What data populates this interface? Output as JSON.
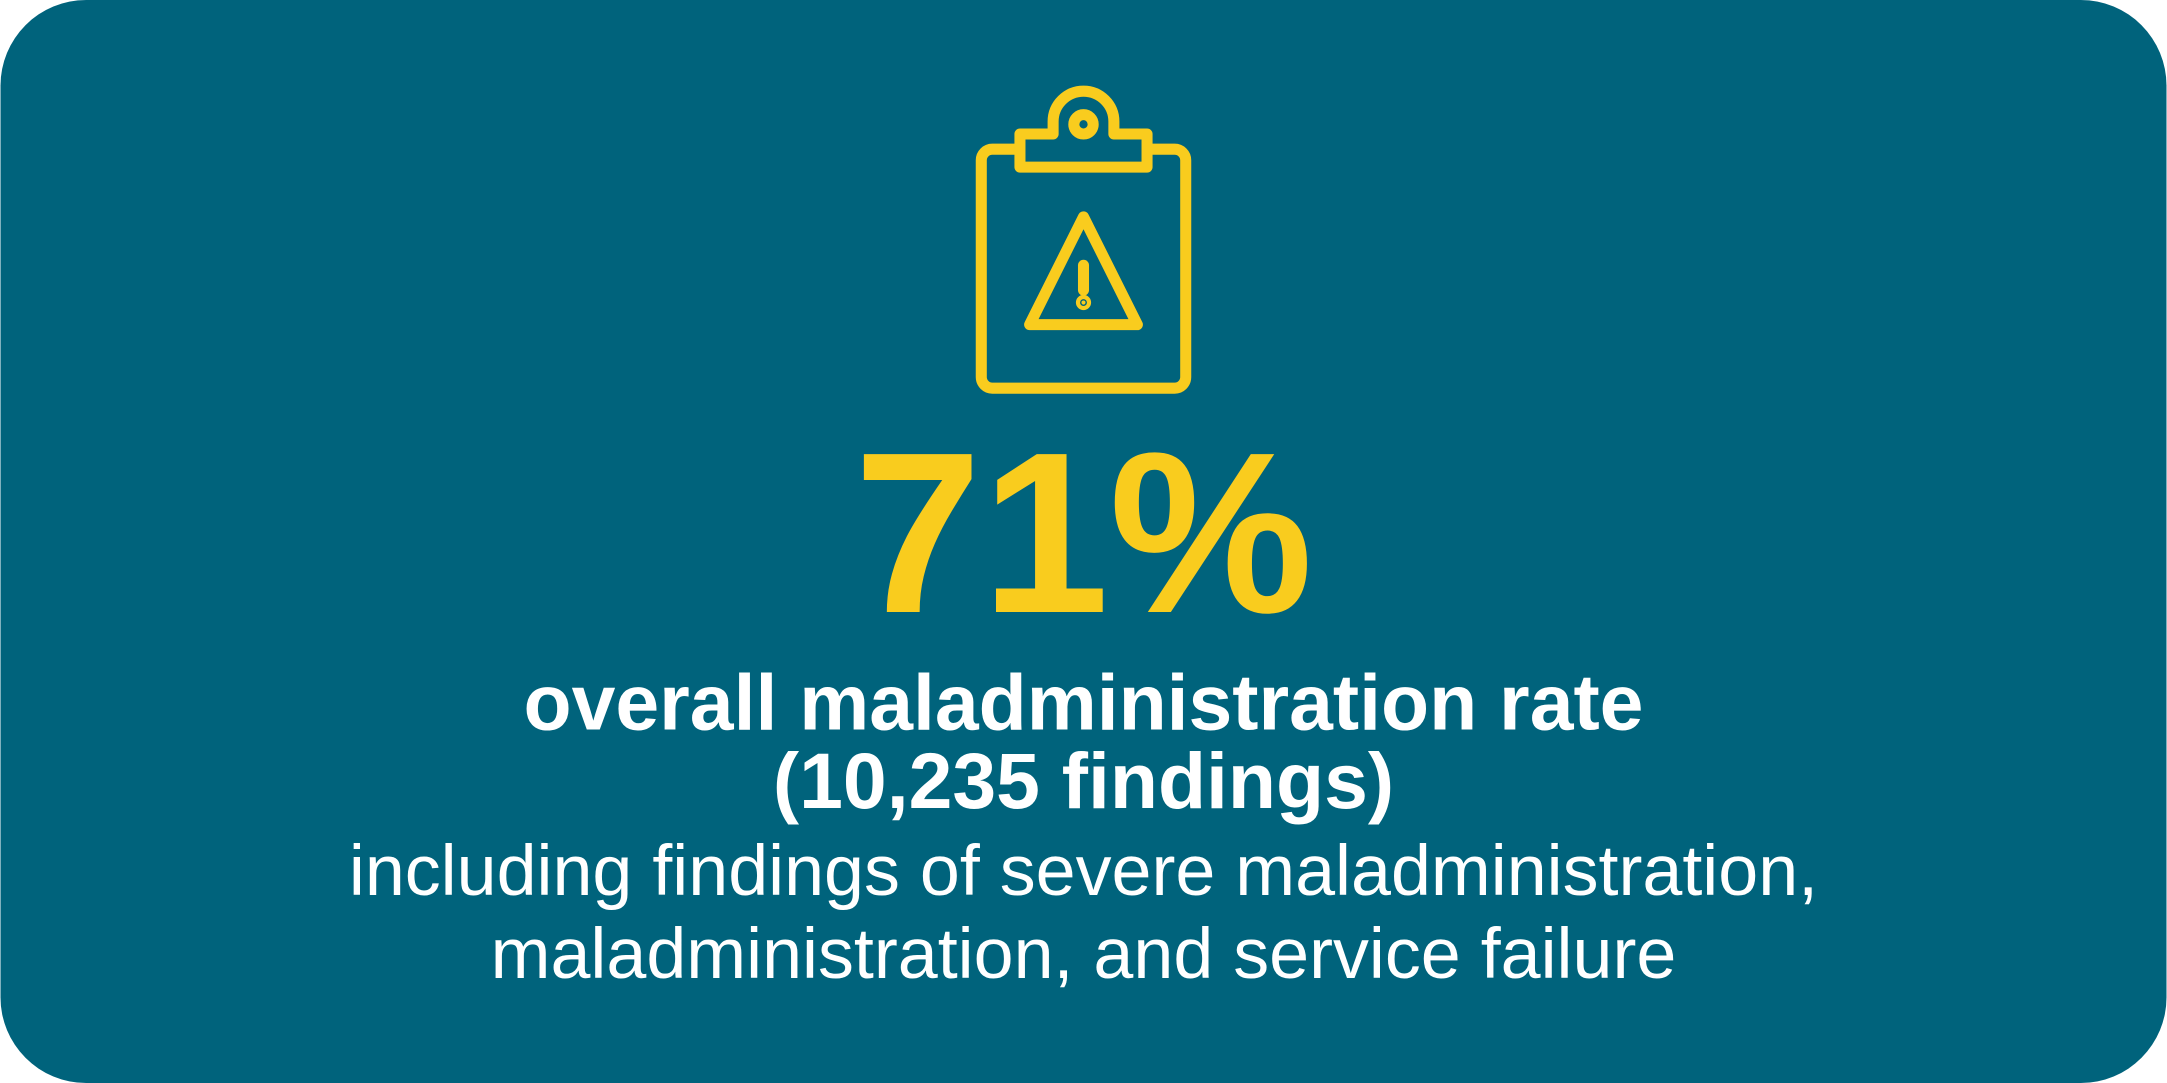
{
  "stat": "71%",
  "headline": "overall maladministration rate",
  "count": "(10,235 findings)",
  "description": [
    "including findings of severe maladministration,",
    "maladministration, and service failure"
  ]
}
